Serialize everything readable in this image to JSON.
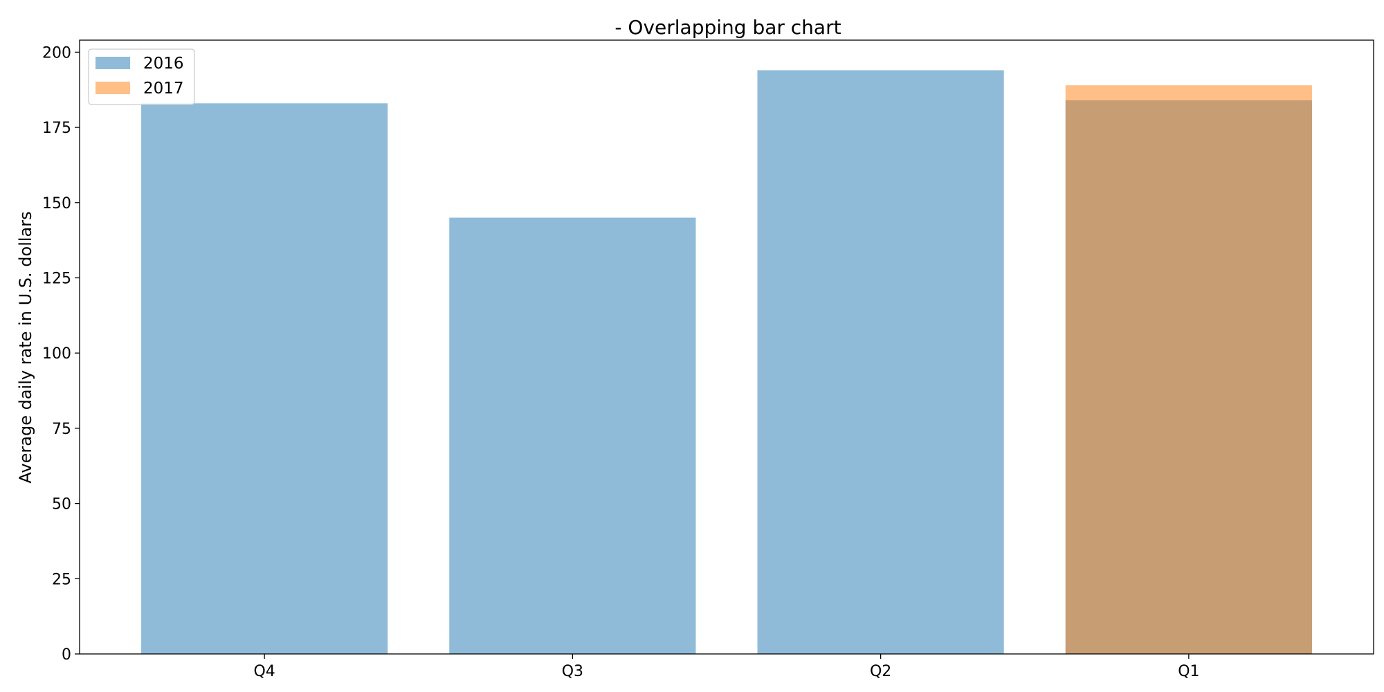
{
  "chart_data": {
    "type": "bar",
    "title": "- Overlapping bar chart",
    "xlabel": "",
    "ylabel": "Average daily rate in U.S. dollars",
    "categories": [
      "Q4",
      "Q3",
      "Q2",
      "Q1"
    ],
    "series": [
      {
        "name": "2016",
        "values": [
          183,
          145,
          194,
          184
        ],
        "color": "#1f77b4",
        "opacity": 0.5
      },
      {
        "name": "2017",
        "values": [
          null,
          null,
          null,
          189
        ],
        "color": "#ff7f0e",
        "opacity": 0.5
      }
    ],
    "ylim": [
      0,
      204
    ],
    "yticks": [
      0,
      25,
      50,
      75,
      100,
      125,
      150,
      175,
      200
    ],
    "grid": false,
    "legend_position": "top-left",
    "overlap": true
  }
}
